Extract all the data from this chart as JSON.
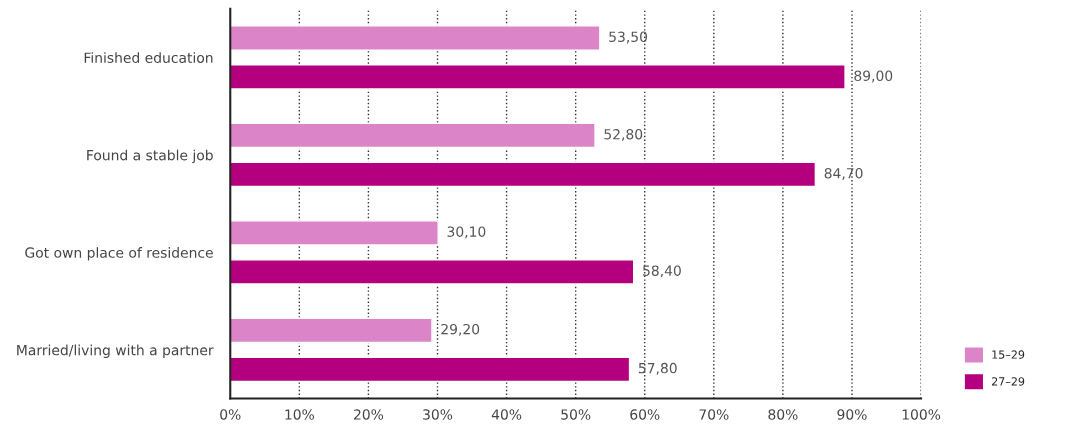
{
  "chart_data": {
    "type": "bar",
    "orientation": "horizontal",
    "categories": [
      "Finished education",
      "Found a stable job",
      "Got own place of residence",
      "Married/living with a partner"
    ],
    "series": [
      {
        "name": "15–29",
        "color": "#dc84c8",
        "values": [
          53.5,
          52.8,
          30.1,
          29.2
        ],
        "value_labels": [
          "53,50",
          "52,80",
          "30,10",
          "29,20"
        ]
      },
      {
        "name": "27–29",
        "color": "#b4007f",
        "values": [
          89.0,
          84.7,
          58.4,
          57.8
        ],
        "value_labels": [
          "89,00",
          "84,70",
          "58,40",
          "57,80"
        ]
      }
    ],
    "xlim": [
      0,
      100
    ],
    "xticks": [
      {
        "value": 0,
        "label": "0%"
      },
      {
        "value": 10,
        "label": "10%"
      },
      {
        "value": 20,
        "label": "20%"
      },
      {
        "value": 30,
        "label": "30%"
      },
      {
        "value": 40,
        "label": "40%"
      },
      {
        "value": 50,
        "label": "50%"
      },
      {
        "value": 60,
        "label": "60%"
      },
      {
        "value": 70,
        "label": "70%"
      },
      {
        "value": 80,
        "label": "80%"
      },
      {
        "value": 90,
        "label": "90%"
      },
      {
        "value": 100,
        "label": "100%"
      }
    ],
    "grid": "x",
    "legend": "bottom right"
  }
}
